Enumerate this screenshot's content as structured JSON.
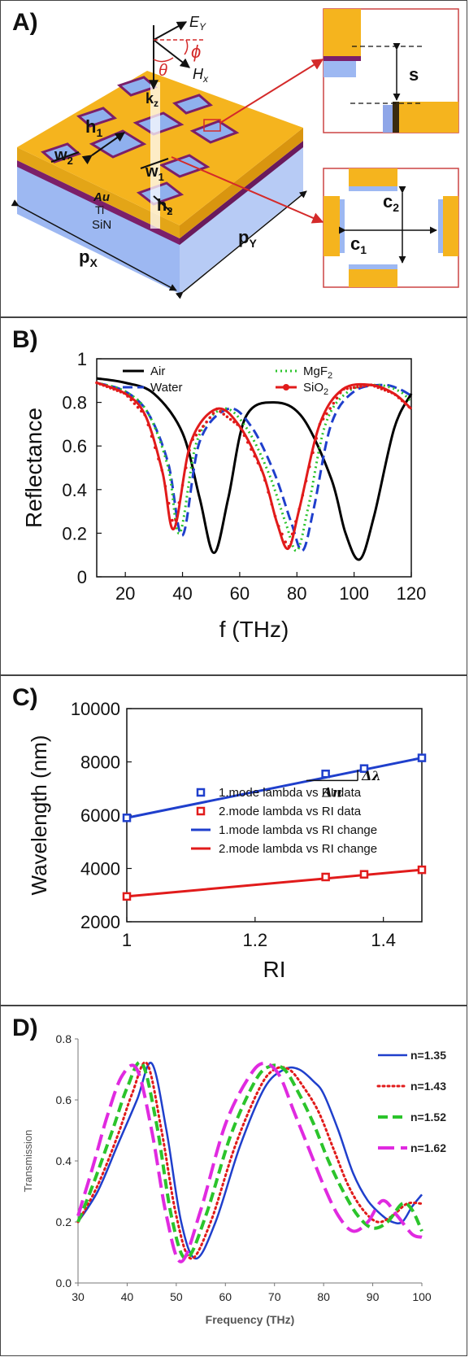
{
  "panels": {
    "a_label": "A)",
    "b_label": "B)",
    "c_label": "C)",
    "d_label": "D)"
  },
  "schematic": {
    "labels": {
      "ey": "E",
      "ey_sub": "Y",
      "hx": "H",
      "hx_sub": "x",
      "phi": "ϕ",
      "theta": "θ",
      "kz": "k",
      "kz_sub": "z",
      "h1": "h",
      "h1_sub": "1",
      "w2": "w",
      "w2_sub": "2",
      "w1": "w",
      "w1_sub": "1",
      "h2": "h",
      "h2_sub": "2",
      "au": "Au",
      "ti": "Ti",
      "sin": "SiN",
      "px": "p",
      "px_sub": "X",
      "py": "p",
      "py_sub": "Y",
      "s": "s",
      "c1": "c",
      "c1_sub": "1",
      "c2": "c",
      "c2_sub": "2"
    },
    "colors": {
      "gold": "#F5B41E",
      "gold_side": "#D9950F",
      "purple": "#7B1F6A",
      "substrate": "#9DB8F2",
      "arrow": "#D42A2A"
    }
  },
  "chart_data": [
    {
      "type": "line",
      "xlabel": "f (THz)",
      "ylabel": "Reflectance",
      "xlim": [
        10,
        120
      ],
      "ylim": [
        0,
        1
      ],
      "xticks": [
        20,
        40,
        60,
        80,
        100,
        120
      ],
      "yticks": [
        0,
        0.2,
        0.4,
        0.6,
        0.8,
        1
      ],
      "legend_position": "top",
      "series": [
        {
          "name": "Air",
          "color": "#000000",
          "style": "solid",
          "x": [
            10,
            20,
            30,
            40,
            46,
            51,
            56,
            62,
            72,
            82,
            92,
            97,
            102,
            107,
            114,
            120
          ],
          "y": [
            0.91,
            0.89,
            0.84,
            0.66,
            0.36,
            0.11,
            0.36,
            0.73,
            0.8,
            0.73,
            0.45,
            0.2,
            0.08,
            0.28,
            0.68,
            0.84
          ]
        },
        {
          "name": "Water",
          "color": "#1F3FCC",
          "style": "dashed",
          "x": [
            10,
            20,
            28,
            35,
            40,
            46,
            56,
            64,
            72,
            78,
            82,
            86,
            92,
            100,
            110,
            116,
            120
          ],
          "y": [
            0.89,
            0.85,
            0.75,
            0.52,
            0.19,
            0.62,
            0.77,
            0.69,
            0.48,
            0.25,
            0.12,
            0.32,
            0.7,
            0.85,
            0.88,
            0.86,
            0.83
          ]
        },
        {
          "name": "MgF",
          "name_sub": "2",
          "color": "#2BC42B",
          "style": "dotted",
          "x": [
            10,
            20,
            28,
            35,
            39,
            45,
            54,
            62,
            70,
            76,
            80,
            84,
            90,
            98,
            108,
            116,
            120
          ],
          "y": [
            0.89,
            0.85,
            0.75,
            0.5,
            0.2,
            0.62,
            0.77,
            0.69,
            0.48,
            0.25,
            0.12,
            0.32,
            0.7,
            0.85,
            0.88,
            0.85,
            0.8
          ]
        },
        {
          "name": "SiO",
          "name_sub": "2",
          "color": "#E11B1B",
          "style": "solid-markers",
          "x": [
            10,
            20,
            27,
            33,
            37,
            43,
            52,
            60,
            68,
            73,
            77,
            81,
            88,
            96,
            106,
            114,
            120
          ],
          "y": [
            0.89,
            0.84,
            0.74,
            0.48,
            0.22,
            0.62,
            0.77,
            0.69,
            0.48,
            0.25,
            0.13,
            0.32,
            0.7,
            0.86,
            0.88,
            0.84,
            0.77
          ]
        }
      ]
    },
    {
      "type": "scatter",
      "xlabel": "RI",
      "ylabel": "Wavelength (nm)",
      "xlim": [
        1,
        1.46
      ],
      "ylim": [
        2000,
        10000
      ],
      "xticks": [
        1,
        1.2,
        1.4
      ],
      "yticks": [
        2000,
        4000,
        6000,
        8000,
        10000
      ],
      "legend_position": "center-right",
      "annotation_dn": "Δn",
      "annotation_dl": "Δλ",
      "series": [
        {
          "name": "1.mode lambda vs RI data",
          "color": "#1F3FCC",
          "marker": "square-open",
          "x": [
            1.0,
            1.31,
            1.37,
            1.46
          ],
          "y": [
            5900,
            7550,
            7750,
            8150
          ]
        },
        {
          "name": "2.mode lambda vs RI data",
          "color": "#E11B1B",
          "marker": "square-open",
          "x": [
            1.0,
            1.31,
            1.37,
            1.46
          ],
          "y": [
            2950,
            3680,
            3780,
            3950
          ]
        },
        {
          "name": "1.mode lambda vs RI change",
          "color": "#1F3FCC",
          "marker": "line",
          "x": [
            1.0,
            1.46
          ],
          "y": [
            5900,
            8150
          ]
        },
        {
          "name": "2.mode lambda vs RI change",
          "color": "#E11B1B",
          "marker": "line",
          "x": [
            1.0,
            1.46
          ],
          "y": [
            2950,
            3950
          ]
        }
      ]
    },
    {
      "type": "line",
      "xlabel": "Frequency (THz)",
      "ylabel": "Transmission",
      "xlim": [
        30,
        100
      ],
      "ylim": [
        0,
        0.8
      ],
      "xticks": [
        30,
        40,
        50,
        60,
        70,
        80,
        90,
        100
      ],
      "xtick_labels": [
        "30",
        "40",
        "50",
        "60",
        "70",
        "80",
        "90",
        "100"
      ],
      "yticks": [
        0,
        0.2,
        0.4,
        0.6,
        0.8
      ],
      "ytick_labels": [
        "0.0",
        "0.2",
        "0.4",
        "0.6",
        "0.8"
      ],
      "legend_position": "right",
      "series": [
        {
          "name": "n=1.35",
          "color": "#1F3FCC",
          "style": "solid",
          "x": [
            30,
            34,
            38,
            42,
            45,
            48,
            51,
            54,
            58,
            63,
            68,
            72,
            75,
            78,
            80,
            83,
            86,
            89,
            92,
            94,
            96,
            98,
            100
          ],
          "y": [
            0.2,
            0.3,
            0.45,
            0.6,
            0.72,
            0.5,
            0.2,
            0.08,
            0.2,
            0.45,
            0.64,
            0.7,
            0.7,
            0.66,
            0.62,
            0.5,
            0.36,
            0.27,
            0.22,
            0.2,
            0.2,
            0.25,
            0.29
          ]
        },
        {
          "name": "n=1.43",
          "color": "#E11B1B",
          "style": "dotted",
          "x": [
            30,
            34,
            38,
            41,
            44,
            47,
            50,
            53,
            57,
            62,
            67,
            70,
            73,
            76,
            79,
            82,
            85,
            88,
            91,
            94,
            97,
            100
          ],
          "y": [
            0.2,
            0.32,
            0.48,
            0.62,
            0.72,
            0.5,
            0.22,
            0.08,
            0.2,
            0.45,
            0.64,
            0.7,
            0.7,
            0.64,
            0.56,
            0.44,
            0.32,
            0.24,
            0.2,
            0.22,
            0.26,
            0.26
          ]
        },
        {
          "name": "n=1.52",
          "color": "#2BC42B",
          "style": "dashed",
          "x": [
            30,
            33,
            37,
            40,
            43,
            46,
            49,
            52,
            56,
            61,
            66,
            69,
            72,
            75,
            78,
            81,
            84,
            87,
            90,
            93,
            96,
            98,
            100
          ],
          "y": [
            0.2,
            0.32,
            0.5,
            0.64,
            0.72,
            0.52,
            0.22,
            0.08,
            0.22,
            0.48,
            0.66,
            0.71,
            0.7,
            0.62,
            0.52,
            0.4,
            0.3,
            0.22,
            0.18,
            0.2,
            0.26,
            0.24,
            0.17
          ]
        },
        {
          "name": "n=1.62",
          "color": "#E02AE0",
          "style": "longdash",
          "x": [
            30,
            33,
            36,
            39,
            42,
            45,
            48,
            51,
            55,
            60,
            65,
            68,
            71,
            74,
            77,
            80,
            83,
            86,
            89,
            92,
            95,
            98,
            100
          ],
          "y": [
            0.22,
            0.38,
            0.55,
            0.68,
            0.7,
            0.5,
            0.22,
            0.07,
            0.24,
            0.52,
            0.68,
            0.72,
            0.68,
            0.56,
            0.44,
            0.32,
            0.22,
            0.17,
            0.2,
            0.27,
            0.22,
            0.16,
            0.15
          ]
        }
      ]
    }
  ]
}
